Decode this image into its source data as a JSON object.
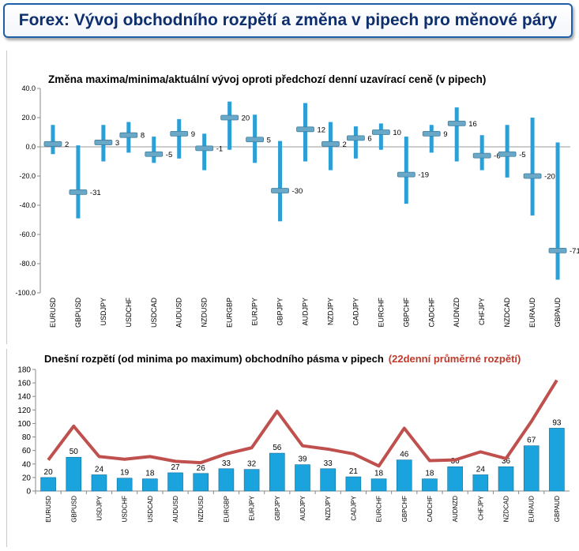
{
  "header": {
    "title": "Forex: Vývoj obchodního rozpětí a změna v pipech pro měnové páry"
  },
  "chart_data": [
    {
      "type": "range",
      "title": "Změna maxima/minima/aktuální vývoj oproti předchozí denní uzavírací ceně (v pipech)",
      "categories": [
        "EURUSD",
        "GBPUSD",
        "USDJPY",
        "USDCHF",
        "USDCAD",
        "AUDUSD",
        "NZDUSD",
        "EURGBP",
        "EURJPY",
        "GBPJPY",
        "AUDJPY",
        "NZDJPY",
        "CADJPY",
        "EURCHF",
        "GBPCHF",
        "CADCHF",
        "AUDNZD",
        "CHFJPY",
        "NZDCAD",
        "EURAUD",
        "GBPAUD"
      ],
      "high": [
        15,
        1,
        15,
        17,
        7,
        19,
        9,
        31,
        22,
        4,
        30,
        17,
        14,
        16,
        7,
        15,
        27,
        8,
        15,
        20,
        3
      ],
      "low": [
        -5,
        -49,
        -10,
        -4,
        -11,
        -8,
        -16,
        -2,
        -11,
        -51,
        -10,
        -16,
        -8,
        -2,
        -39,
        -4,
        -10,
        -16,
        -21,
        -47,
        -91
      ],
      "current": [
        2,
        -31,
        3,
        8,
        -5,
        9,
        -1,
        20,
        5,
        -30,
        12,
        2,
        6,
        10,
        -19,
        9,
        16,
        -6,
        -5,
        -20,
        -71
      ],
      "current_labels": [
        "2",
        "-31",
        "3",
        "8",
        "-5",
        "9",
        "-1",
        "20",
        "5",
        "-30",
        "12",
        "2",
        "6",
        "10",
        "-19",
        "9",
        "16",
        "-6",
        "-5",
        "-20",
        "-71"
      ],
      "ylim": [
        -100,
        40
      ],
      "yticks": [
        "40.0",
        "20.0",
        "0.0",
        "-20.0",
        "-40.0",
        "-60.0",
        "-80.0",
        "-100.0"
      ],
      "colors": {
        "bar": "#2c9fd6",
        "marker": "#6aa8c8"
      }
    },
    {
      "type": "bar+line",
      "title": "Dnešní rozpětí (od minima po maximum) obchodního pásma v pipech",
      "title_highlight": "(22denní průměrné rozpětí)",
      "categories": [
        "EURUSD",
        "GBPUSD",
        "USDJPY",
        "USDCHF",
        "USDCAD",
        "AUDUSD",
        "NZDUSD",
        "EURGBP",
        "EURJPY",
        "GBPJPY",
        "AUDJPY",
        "NZDJPY",
        "CADJPY",
        "EURCHF",
        "GBPCHF",
        "CADCHF",
        "AUDNZD",
        "CHFJPY",
        "NZDCAD",
        "EURAUD",
        "GBPAUD"
      ],
      "bars": [
        20,
        50,
        24,
        19,
        18,
        27,
        26,
        33,
        32,
        56,
        39,
        33,
        21,
        18,
        46,
        18,
        36,
        24,
        36,
        67,
        93
      ],
      "bar_labels": [
        "20",
        "50",
        "24",
        "19",
        "18",
        "27",
        "26",
        "33",
        "32",
        "56",
        "39",
        "33",
        "21",
        "18",
        "46",
        "18",
        "36",
        "24",
        "36",
        "67",
        "93"
      ],
      "line": [
        46,
        96,
        51,
        47,
        51,
        44,
        42,
        55,
        64,
        118,
        67,
        62,
        55,
        37,
        93,
        45,
        46,
        58,
        48,
        103,
        164
      ],
      "ylim": [
        0,
        180
      ],
      "yticks": [
        "180",
        "160",
        "140",
        "120",
        "100",
        "80",
        "60",
        "40",
        "20",
        "0"
      ],
      "colors": {
        "bar": "#1aa3dc",
        "line": "#c0504d",
        "highlight": "#c0392b"
      }
    }
  ]
}
